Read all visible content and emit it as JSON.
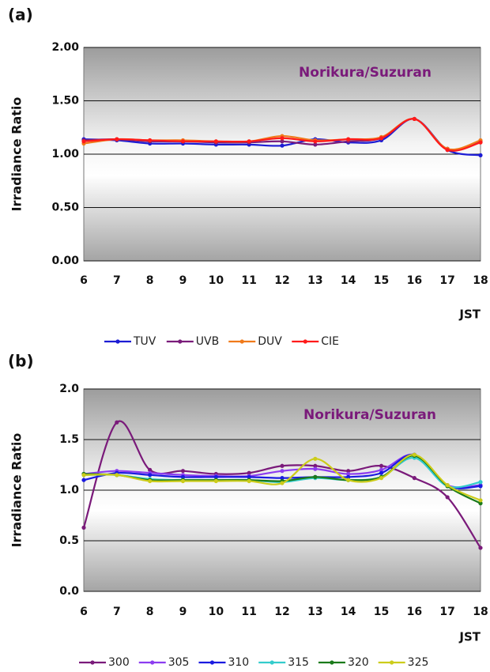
{
  "chart_data": [
    {
      "type": "line",
      "panel_label": "(a)",
      "annotation": "Norikura/Suzuran",
      "y_label": "Irradiance Ratio",
      "x_label": "JST",
      "x": [
        6,
        7,
        8,
        9,
        10,
        11,
        12,
        13,
        14,
        15,
        16,
        17,
        18
      ],
      "xlim": [
        6,
        18
      ],
      "xticks": [
        6,
        7,
        8,
        9,
        10,
        11,
        12,
        13,
        14,
        15,
        16,
        17,
        18
      ],
      "ylim": [
        0,
        2
      ],
      "yticks": [
        {
          "value": 0,
          "label": "0.00"
        },
        {
          "value": 0.5,
          "label": "0.50"
        },
        {
          "value": 1,
          "label": "1.00"
        },
        {
          "value": 1.5,
          "label": "1.50"
        },
        {
          "value": 2,
          "label": "2.00"
        }
      ],
      "grid": true,
      "series": [
        {
          "name": "TUV",
          "color": "#1c1cd4",
          "values": [
            1.14,
            1.13,
            1.1,
            1.1,
            1.09,
            1.09,
            1.08,
            1.14,
            1.11,
            1.13,
            1.33,
            1.04,
            0.99
          ]
        },
        {
          "name": "UVB",
          "color": "#7a1c7a",
          "values": [
            1.13,
            1.14,
            1.12,
            1.12,
            1.11,
            1.11,
            1.12,
            1.09,
            1.12,
            1.15,
            1.33,
            1.05,
            1.12
          ]
        },
        {
          "name": "DUV",
          "color": "#f07a1a",
          "values": [
            1.1,
            1.14,
            1.13,
            1.13,
            1.12,
            1.12,
            1.17,
            1.13,
            1.14,
            1.16,
            1.33,
            1.05,
            1.13
          ]
        },
        {
          "name": "CIE",
          "color": "#ff1a1a",
          "values": [
            1.12,
            1.14,
            1.13,
            1.12,
            1.12,
            1.12,
            1.15,
            1.12,
            1.14,
            1.15,
            1.33,
            1.04,
            1.11
          ]
        }
      ]
    },
    {
      "type": "line",
      "panel_label": "(b)",
      "annotation": "Norikura/Suzuran",
      "y_label": "Irradiance Ratio",
      "x_label": "JST",
      "x": [
        6,
        7,
        8,
        9,
        10,
        11,
        12,
        13,
        14,
        15,
        16,
        17,
        18
      ],
      "xlim": [
        6,
        18
      ],
      "xticks": [
        6,
        7,
        8,
        9,
        10,
        11,
        12,
        13,
        14,
        15,
        16,
        17,
        18
      ],
      "ylim": [
        0,
        2
      ],
      "yticks": [
        {
          "value": 0,
          "label": "0.0"
        },
        {
          "value": 0.5,
          "label": "0.5"
        },
        {
          "value": 1,
          "label": "1.0"
        },
        {
          "value": 1.5,
          "label": "1.5"
        },
        {
          "value": 2,
          "label": "2.0"
        }
      ],
      "grid": true,
      "series": [
        {
          "name": "300",
          "color": "#7a1a7a",
          "values": [
            0.63,
            1.67,
            1.2,
            1.19,
            1.16,
            1.17,
            1.24,
            1.24,
            1.19,
            1.24,
            1.12,
            0.93,
            0.43
          ]
        },
        {
          "name": "305",
          "color": "#8c3cf0",
          "values": [
            1.16,
            1.19,
            1.17,
            1.15,
            1.14,
            1.14,
            1.19,
            1.21,
            1.16,
            1.2,
            1.35,
            1.05,
            1.05
          ]
        },
        {
          "name": "310",
          "color": "#1a1ae0",
          "values": [
            1.1,
            1.17,
            1.15,
            1.13,
            1.13,
            1.13,
            1.12,
            1.13,
            1.13,
            1.17,
            1.35,
            1.04,
            1.04
          ]
        },
        {
          "name": "315",
          "color": "#33cccc",
          "values": [
            1.15,
            1.15,
            1.11,
            1.1,
            1.1,
            1.1,
            1.08,
            1.12,
            1.1,
            1.13,
            1.32,
            1.04,
            1.08
          ]
        },
        {
          "name": "320",
          "color": "#1a7a1a",
          "values": [
            1.16,
            1.15,
            1.1,
            1.1,
            1.1,
            1.1,
            1.09,
            1.13,
            1.1,
            1.13,
            1.34,
            1.04,
            0.87
          ]
        },
        {
          "name": "325",
          "color": "#cccc1a",
          "values": [
            1.15,
            1.15,
            1.09,
            1.09,
            1.09,
            1.09,
            1.07,
            1.31,
            1.1,
            1.12,
            1.35,
            1.05,
            0.9
          ]
        }
      ]
    }
  ]
}
